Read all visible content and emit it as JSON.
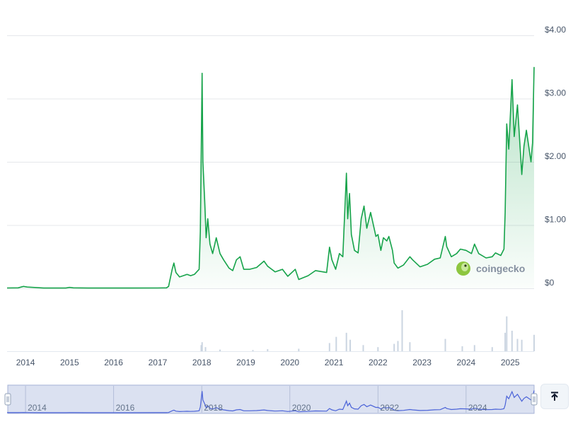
{
  "watermark": {
    "text": "coingecko"
  },
  "scroll_top_button": {
    "icon": "arrow-up-to-line-icon"
  },
  "colors": {
    "line": "#16a34a",
    "area_top": "#16a34a",
    "navigator_line": "#4a62d8",
    "navigator_mask": "#dbe1f1",
    "volume": "#cbd5e1"
  },
  "chart_data": {
    "type": "area",
    "xlabel": "",
    "ylabel": "",
    "xlim": [
      "2013-08-01",
      "2025-07-18"
    ],
    "ylim": [
      0,
      4
    ],
    "y_ticks": [
      "$0",
      "$1.00",
      "$2.00",
      "$3.00",
      "$4.00"
    ],
    "y_tick_values": [
      0,
      1,
      2,
      3,
      4
    ],
    "x_ticks": [
      "2014",
      "2015",
      "2016",
      "2017",
      "2018",
      "2019",
      "2020",
      "2021",
      "2022",
      "2023",
      "2024",
      "2025"
    ],
    "navigator_ticks": [
      "2014",
      "2016",
      "2018",
      "2020",
      "2022",
      "2024"
    ],
    "grid": true,
    "series": [
      {
        "values": [
          [
            "2013-08-01",
            0.006
          ],
          [
            "2013-11-01",
            0.008
          ],
          [
            "2013-12-15",
            0.03
          ],
          [
            "2014-01-15",
            0.02
          ],
          [
            "2014-06-01",
            0.005
          ],
          [
            "2014-12-01",
            0.004
          ],
          [
            "2015-01-01",
            0.015
          ],
          [
            "2015-02-01",
            0.008
          ],
          [
            "2015-06-01",
            0.004
          ],
          [
            "2016-01-01",
            0.005
          ],
          [
            "2016-06-01",
            0.005
          ],
          [
            "2017-01-01",
            0.006
          ],
          [
            "2017-03-15",
            0.008
          ],
          [
            "2017-04-01",
            0.03
          ],
          [
            "2017-05-01",
            0.3
          ],
          [
            "2017-05-15",
            0.4
          ],
          [
            "2017-06-01",
            0.25
          ],
          [
            "2017-07-01",
            0.18
          ],
          [
            "2017-08-01",
            0.2
          ],
          [
            "2017-09-01",
            0.22
          ],
          [
            "2017-10-01",
            0.2
          ],
          [
            "2017-11-01",
            0.22
          ],
          [
            "2017-12-10",
            0.3
          ],
          [
            "2017-12-20",
            0.9
          ],
          [
            "2017-12-28",
            2.2
          ],
          [
            "2018-01-04",
            3.4
          ],
          [
            "2018-01-10",
            2.0
          ],
          [
            "2018-01-25",
            1.4
          ],
          [
            "2018-02-06",
            0.8
          ],
          [
            "2018-02-20",
            1.1
          ],
          [
            "2018-03-10",
            0.7
          ],
          [
            "2018-04-01",
            0.55
          ],
          [
            "2018-05-01",
            0.8
          ],
          [
            "2018-06-01",
            0.55
          ],
          [
            "2018-07-01",
            0.45
          ],
          [
            "2018-08-15",
            0.32
          ],
          [
            "2018-09-15",
            0.28
          ],
          [
            "2018-10-15",
            0.45
          ],
          [
            "2018-11-15",
            0.5
          ],
          [
            "2018-12-15",
            0.3
          ],
          [
            "2019-02-01",
            0.3
          ],
          [
            "2019-04-01",
            0.33
          ],
          [
            "2019-06-01",
            0.43
          ],
          [
            "2019-07-01",
            0.35
          ],
          [
            "2019-09-01",
            0.26
          ],
          [
            "2019-11-01",
            0.3
          ],
          [
            "2019-12-15",
            0.19
          ],
          [
            "2020-02-15",
            0.3
          ],
          [
            "2020-03-15",
            0.14
          ],
          [
            "2020-06-01",
            0.2
          ],
          [
            "2020-08-01",
            0.28
          ],
          [
            "2020-11-01",
            0.25
          ],
          [
            "2020-11-25",
            0.65
          ],
          [
            "2020-12-15",
            0.45
          ],
          [
            "2021-01-15",
            0.3
          ],
          [
            "2021-02-15",
            0.55
          ],
          [
            "2021-03-15",
            0.5
          ],
          [
            "2021-04-14",
            1.82
          ],
          [
            "2021-04-25",
            1.1
          ],
          [
            "2021-05-10",
            1.5
          ],
          [
            "2021-05-25",
            0.85
          ],
          [
            "2021-06-20",
            0.6
          ],
          [
            "2021-07-20",
            0.56
          ],
          [
            "2021-08-15",
            1.1
          ],
          [
            "2021-09-07",
            1.3
          ],
          [
            "2021-09-30",
            0.95
          ],
          [
            "2021-11-01",
            1.2
          ],
          [
            "2021-12-15",
            0.82
          ],
          [
            "2022-01-01",
            0.85
          ],
          [
            "2022-01-25",
            0.6
          ],
          [
            "2022-02-15",
            0.8
          ],
          [
            "2022-03-15",
            0.75
          ],
          [
            "2022-04-01",
            0.82
          ],
          [
            "2022-05-01",
            0.6
          ],
          [
            "2022-05-15",
            0.4
          ],
          [
            "2022-06-15",
            0.32
          ],
          [
            "2022-08-01",
            0.37
          ],
          [
            "2022-09-22",
            0.5
          ],
          [
            "2022-10-15",
            0.45
          ],
          [
            "2022-12-15",
            0.34
          ],
          [
            "2023-02-15",
            0.38
          ],
          [
            "2023-04-15",
            0.46
          ],
          [
            "2023-06-01",
            0.48
          ],
          [
            "2023-07-13",
            0.82
          ],
          [
            "2023-07-25",
            0.66
          ],
          [
            "2023-09-01",
            0.5
          ],
          [
            "2023-10-15",
            0.55
          ],
          [
            "2023-11-15",
            0.62
          ],
          [
            "2024-01-01",
            0.6
          ],
          [
            "2024-02-15",
            0.55
          ],
          [
            "2024-03-11",
            0.7
          ],
          [
            "2024-04-15",
            0.55
          ],
          [
            "2024-06-15",
            0.48
          ],
          [
            "2024-08-05",
            0.5
          ],
          [
            "2024-09-01",
            0.56
          ],
          [
            "2024-10-15",
            0.52
          ],
          [
            "2024-11-10",
            0.62
          ],
          [
            "2024-11-20",
            1.2
          ],
          [
            "2024-12-03",
            2.6
          ],
          [
            "2024-12-20",
            2.2
          ],
          [
            "2025-01-16",
            3.3
          ],
          [
            "2025-02-03",
            2.4
          ],
          [
            "2025-03-02",
            2.9
          ],
          [
            "2025-04-07",
            1.8
          ],
          [
            "2025-04-25",
            2.25
          ],
          [
            "2025-05-15",
            2.5
          ],
          [
            "2025-06-22",
            2.0
          ],
          [
            "2025-07-05",
            2.3
          ],
          [
            "2025-07-18",
            3.5
          ]
        ]
      }
    ],
    "volume": [
      [
        "2017-12-28",
        0.15
      ],
      [
        "2018-01-04",
        0.22
      ],
      [
        "2018-02-01",
        0.1
      ],
      [
        "2018-06-01",
        0.04
      ],
      [
        "2019-03-01",
        0.03
      ],
      [
        "2019-07-01",
        0.05
      ],
      [
        "2020-03-15",
        0.06
      ],
      [
        "2020-11-25",
        0.2
      ],
      [
        "2021-01-20",
        0.35
      ],
      [
        "2021-04-14",
        0.45
      ],
      [
        "2021-05-15",
        0.28
      ],
      [
        "2021-09-01",
        0.15
      ],
      [
        "2022-01-01",
        0.1
      ],
      [
        "2022-05-15",
        0.18
      ],
      [
        "2022-06-15",
        0.25
      ],
      [
        "2022-07-20",
        1.0
      ],
      [
        "2022-09-22",
        0.22
      ],
      [
        "2023-07-13",
        0.3
      ],
      [
        "2023-12-01",
        0.12
      ],
      [
        "2024-03-11",
        0.15
      ],
      [
        "2024-08-05",
        0.1
      ],
      [
        "2024-11-20",
        0.45
      ],
      [
        "2024-12-03",
        0.85
      ],
      [
        "2025-01-16",
        0.5
      ],
      [
        "2025-03-02",
        0.3
      ],
      [
        "2025-04-07",
        0.28
      ],
      [
        "2025-07-18",
        0.4
      ]
    ]
  }
}
